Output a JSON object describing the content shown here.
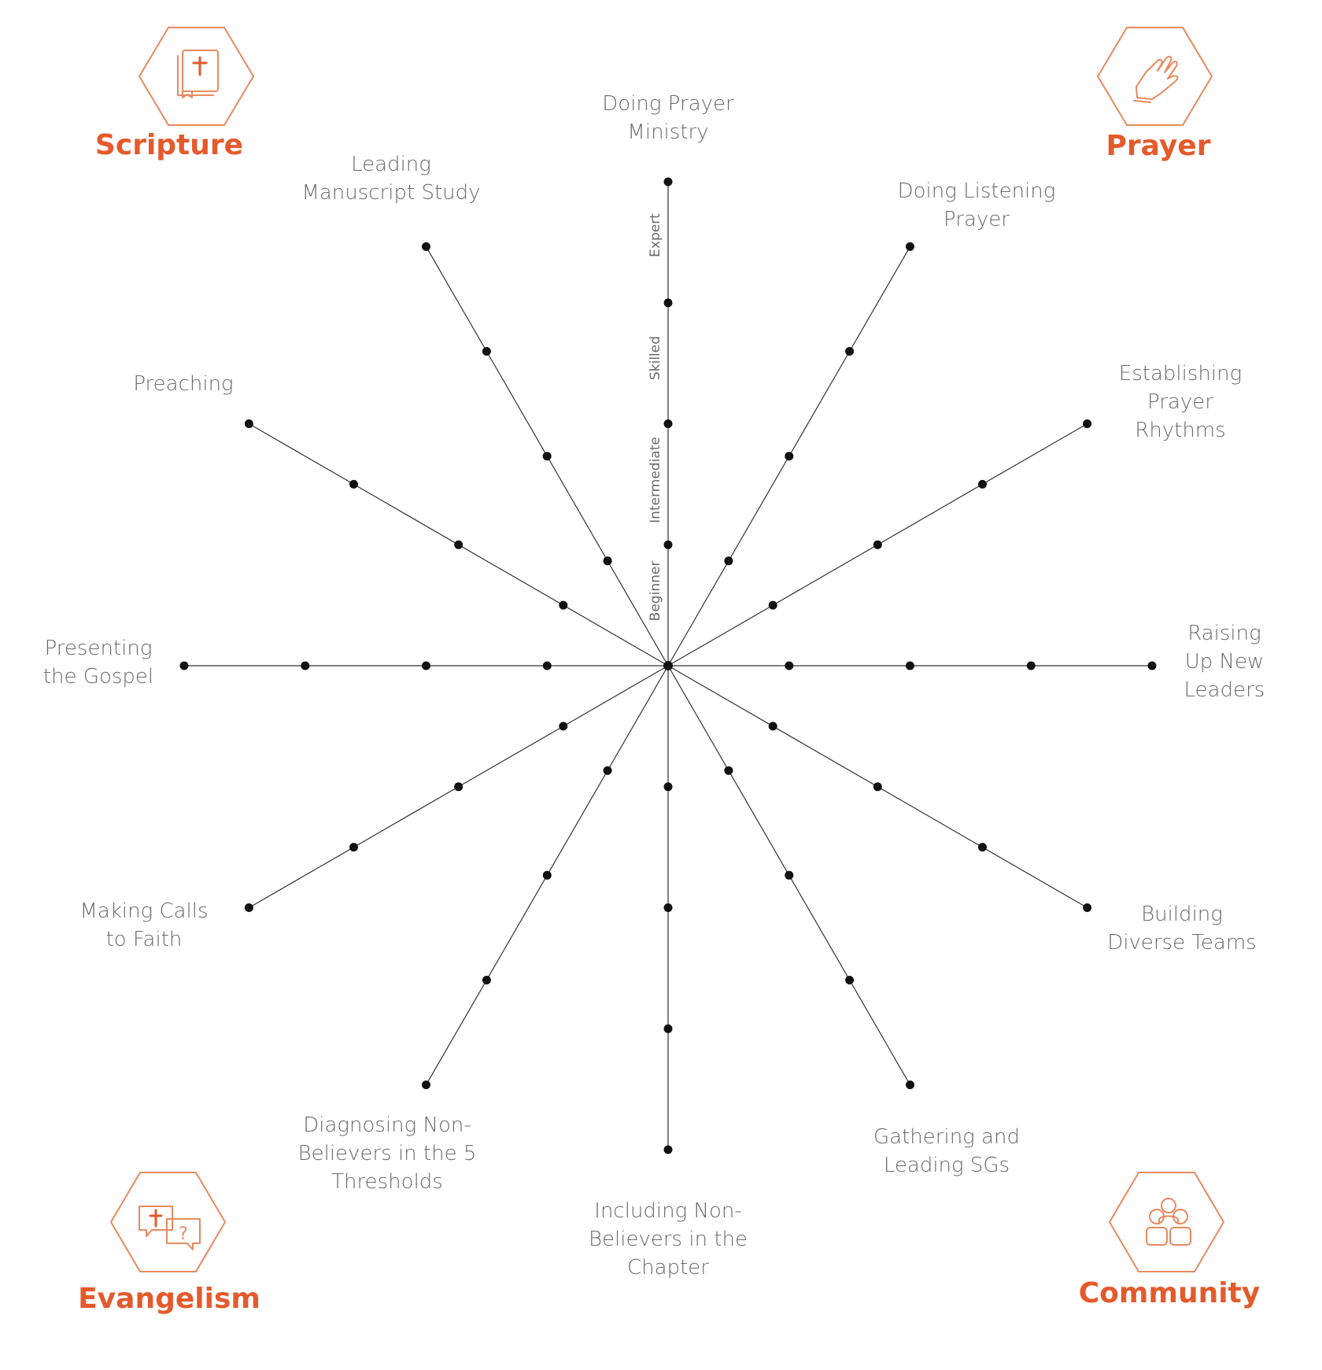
{
  "levels": [
    "Beginner",
    "Intermediate",
    "Skilled",
    "Expert"
  ],
  "categories": [
    {
      "id": "scripture",
      "title": "Scripture",
      "icon": "bible-icon",
      "color": "#e55a2b"
    },
    {
      "id": "prayer",
      "title": "Prayer",
      "icon": "praying-hands-icon",
      "color": "#e55a2b"
    },
    {
      "id": "evangelism",
      "title": "Evangelism",
      "icon": "speech-bubbles-cross-question-icon",
      "color": "#e55a2b"
    },
    {
      "id": "community",
      "title": "Community",
      "icon": "group-people-icon",
      "color": "#e55a2b"
    }
  ],
  "spokes": [
    {
      "label": [
        "Doing Prayer",
        "Ministry"
      ]
    },
    {
      "label": [
        "Doing Listening",
        "Prayer"
      ]
    },
    {
      "label": [
        "Establishing",
        "Prayer",
        "Rhythms"
      ]
    },
    {
      "label": [
        "Raising",
        "Up New",
        "Leaders"
      ]
    },
    {
      "label": [
        "Building",
        "Diverse Teams"
      ]
    },
    {
      "label": [
        "Gathering and",
        "Leading SGs"
      ]
    },
    {
      "label": [
        "Including Non-",
        "Believers in the",
        "Chapter"
      ]
    },
    {
      "label": [
        "Diagnosing Non-",
        "Believers in the 5",
        "Thresholds"
      ]
    },
    {
      "label": [
        "Making Calls",
        "to Faith"
      ]
    },
    {
      "label": [
        "Presenting",
        "the Gospel"
      ]
    },
    {
      "label": [
        "Preaching"
      ]
    },
    {
      "label": [
        "Leading",
        "Manuscript Study"
      ]
    }
  ]
}
